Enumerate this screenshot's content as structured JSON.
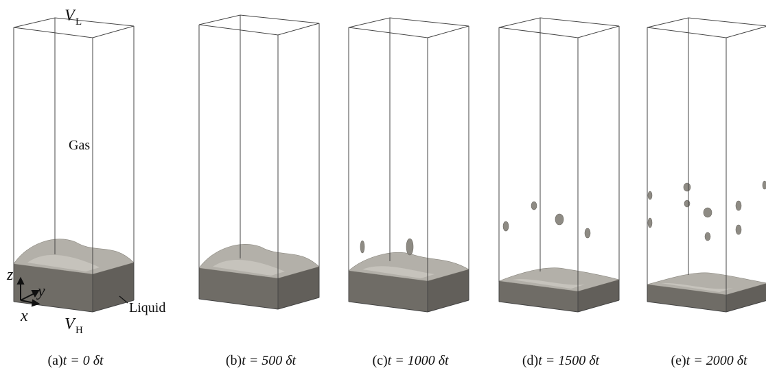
{
  "panels": [
    {
      "tag": "(a)",
      "equation": "t = 0 δt"
    },
    {
      "tag": "(b)",
      "equation": "t = 500 δt"
    },
    {
      "tag": "(c)",
      "equation": "t = 1000 δt"
    },
    {
      "tag": "(d)",
      "equation": "t = 1500 δt"
    },
    {
      "tag": "(e)",
      "equation": "t = 2000 δt"
    }
  ],
  "annotations": {
    "top_boundary": {
      "symbol": "V",
      "subscript": "L"
    },
    "bottom_boundary": {
      "symbol": "V",
      "subscript": "H"
    },
    "gas": "Gas",
    "liquid": "Liquid",
    "axes": {
      "x": "x",
      "y": "y",
      "z": "z"
    }
  }
}
